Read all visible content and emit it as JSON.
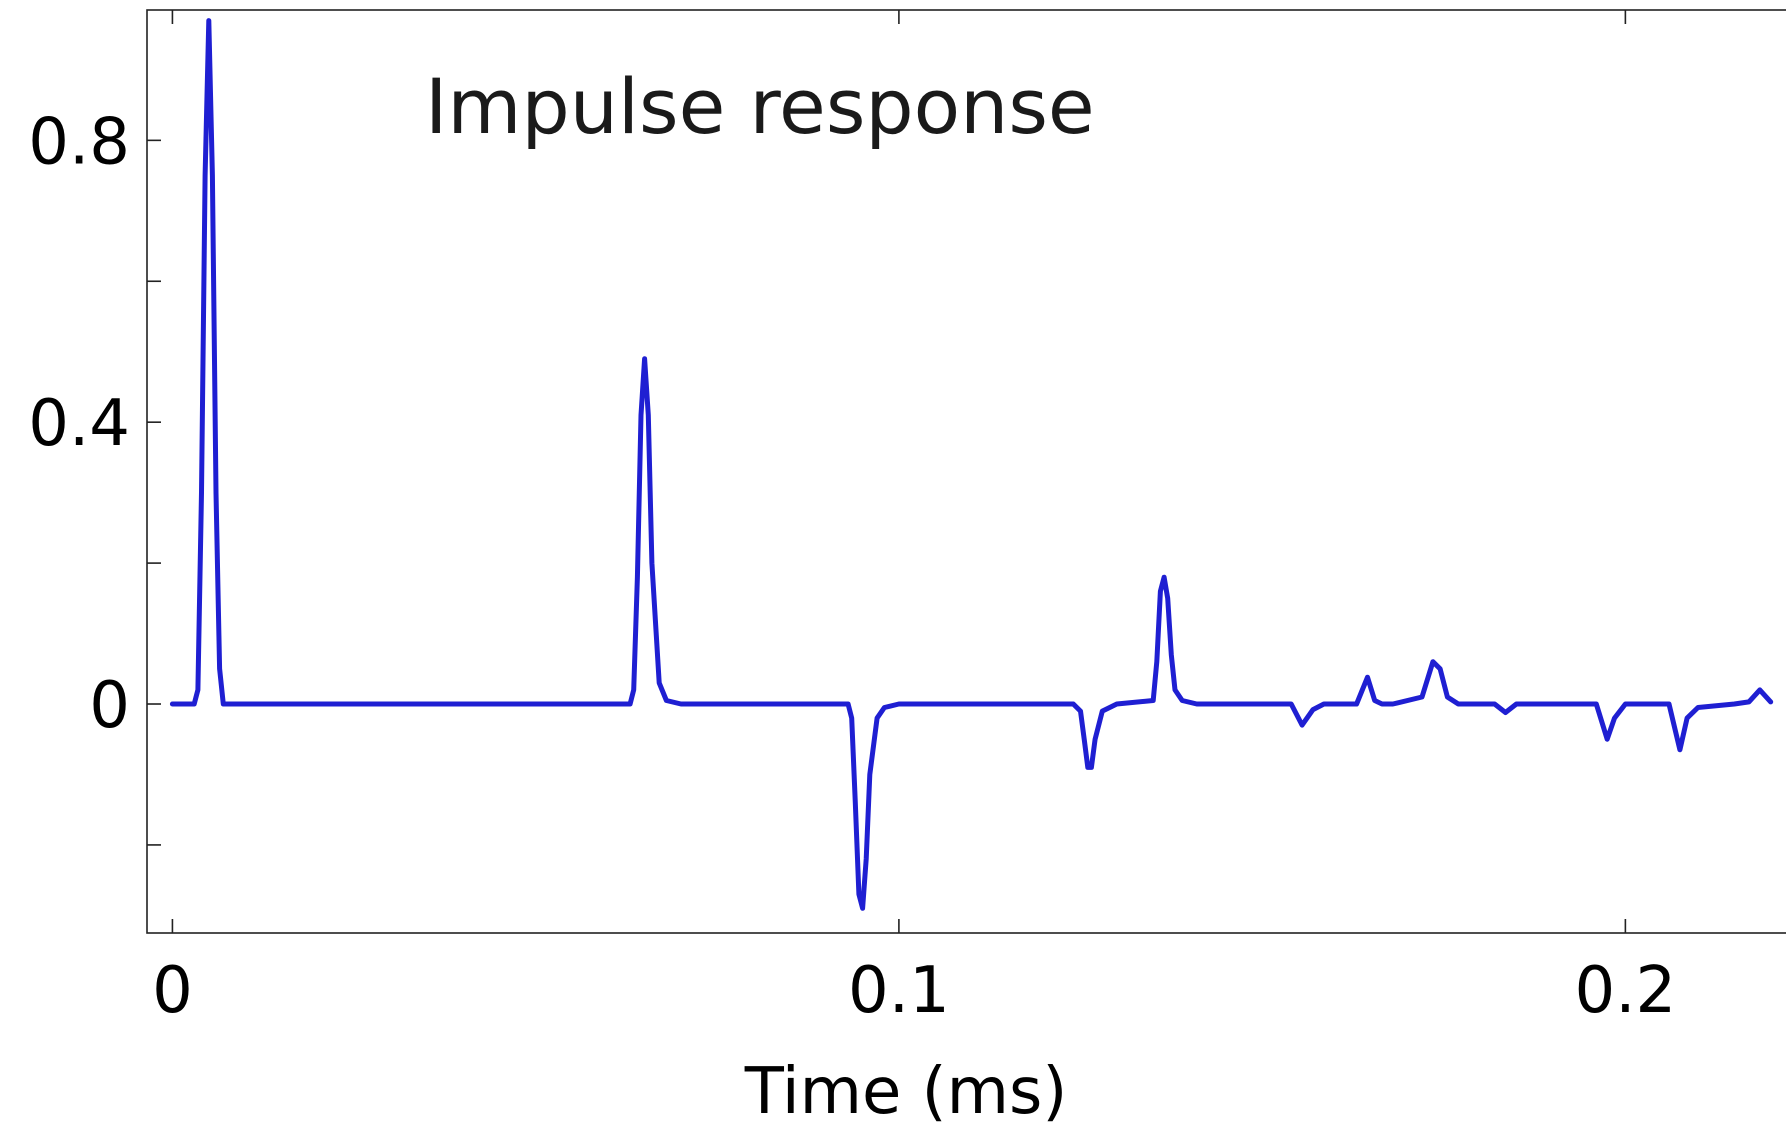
{
  "chart_data": {
    "type": "line",
    "title": "Impulse response",
    "xlabel": "Time (ms)",
    "ylabel": "",
    "xlim": [
      -0.0035,
      0.225
    ],
    "ylim": [
      -0.325,
      0.985
    ],
    "x_ticks": [
      0,
      0.1,
      0.2
    ],
    "x_tick_labels": [
      "0",
      "0.1",
      "0.2"
    ],
    "y_ticks": [
      -0.2,
      0,
      0.2,
      0.4,
      0.6,
      0.8
    ],
    "y_tick_labels": [
      "",
      "0",
      "",
      "0.4",
      "",
      "0.8"
    ],
    "grid": false,
    "legend": false,
    "series": [
      {
        "color": "#1f1fd2",
        "x": [
          0,
          0.003,
          0.0035,
          0.004,
          0.0045,
          0.005,
          0.0055,
          0.006,
          0.0065,
          0.007,
          0.008,
          0.063,
          0.0635,
          0.064,
          0.0645,
          0.065,
          0.0655,
          0.066,
          0.067,
          0.068,
          0.07,
          0.093,
          0.0935,
          0.094,
          0.0945,
          0.095,
          0.0955,
          0.096,
          0.097,
          0.098,
          0.1,
          0.124,
          0.125,
          0.1255,
          0.126,
          0.1265,
          0.127,
          0.128,
          0.13,
          0.135,
          0.1355,
          0.136,
          0.1365,
          0.137,
          0.1375,
          0.138,
          0.139,
          0.141,
          0.154,
          0.1555,
          0.157,
          0.1585,
          0.163,
          0.1645,
          0.1655,
          0.1665,
          0.168,
          0.172,
          0.1735,
          0.1745,
          0.1755,
          0.177,
          0.182,
          0.1835,
          0.185,
          0.196,
          0.1975,
          0.1985,
          0.2,
          0.206,
          0.2075,
          0.2085,
          0.21,
          0.215,
          0.217,
          0.2185,
          0.22
        ],
        "y": [
          0,
          0,
          0.02,
          0.3,
          0.75,
          0.97,
          0.75,
          0.3,
          0.05,
          0,
          0,
          0,
          0.02,
          0.18,
          0.41,
          0.49,
          0.41,
          0.2,
          0.03,
          0.005,
          0,
          0,
          -0.02,
          -0.14,
          -0.27,
          -0.29,
          -0.22,
          -0.1,
          -0.02,
          -0.005,
          0,
          0,
          -0.01,
          -0.05,
          -0.09,
          -0.09,
          -0.05,
          -0.01,
          0,
          0.005,
          0.06,
          0.16,
          0.18,
          0.15,
          0.07,
          0.02,
          0.005,
          0,
          0,
          -0.03,
          -0.008,
          0,
          0,
          0.038,
          0.005,
          0,
          0,
          0.01,
          0.06,
          0.05,
          0.01,
          0,
          0,
          -0.012,
          0,
          0,
          -0.05,
          -0.02,
          0,
          0,
          -0.065,
          -0.02,
          -0.005,
          0,
          0.003,
          0.02,
          0.003
        ]
      }
    ]
  }
}
